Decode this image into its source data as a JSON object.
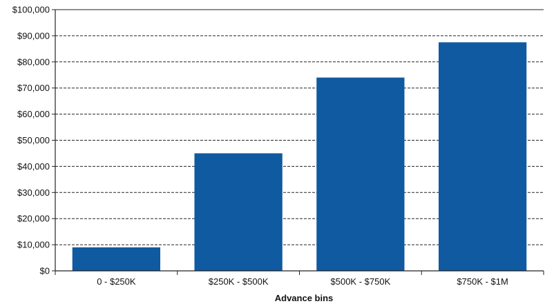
{
  "chart_data": {
    "type": "bar",
    "title": "",
    "xlabel": "Advance bins",
    "ylabel": "",
    "categories": [
      "0 - $250K",
      "$250K - $500K",
      "$500K - $750K",
      "$750K - $1M"
    ],
    "values": [
      9000,
      45000,
      74000,
      87500
    ],
    "ylim": [
      0,
      100000
    ],
    "ytick_step": 10000,
    "ytick_labels": [
      "$0",
      "$10,000",
      "$20,000",
      "$30,000",
      "$40,000",
      "$50,000",
      "$60,000",
      "$70,000",
      "$80,000",
      "$90,000",
      "$100,000"
    ],
    "grid": "horizontal dashed",
    "legend": "none",
    "bar_color": "#0f5aa0"
  }
}
